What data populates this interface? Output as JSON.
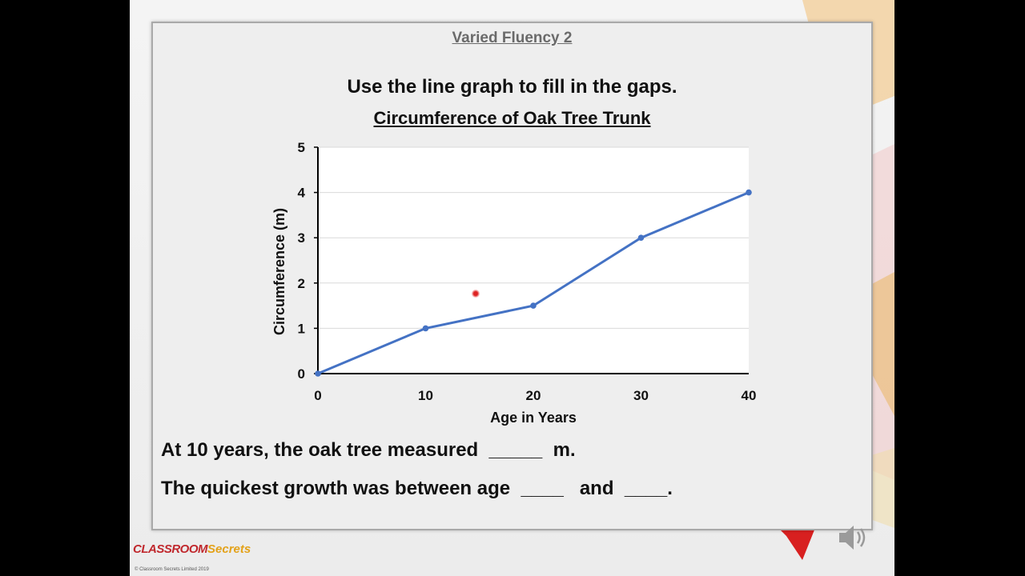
{
  "slide": {
    "section_title": "Varied Fluency 2",
    "instruction": "Use the line graph to fill in the gaps.",
    "question_1": "At 10 years, the oak tree measured  _____  m.",
    "question_2": "The quickest growth was between age  ____   and  ____.",
    "logo_main": "CLASSROOM",
    "logo_secrets": "Secrets",
    "logo_copyright": "© Classroom Secrets Limited 2019",
    "speaker_icon": "speaker-icon",
    "colors": {
      "line": "#4472c4",
      "panel": "#eeeeee",
      "plot_bg": "#ffffff"
    }
  },
  "chart_data": {
    "type": "line",
    "title": "Circumference of Oak Tree Trunk",
    "xlabel": "Age in Years",
    "ylabel": "Circumference (m)",
    "x": [
      0,
      10,
      20,
      30,
      40
    ],
    "series": [
      {
        "values": [
          0,
          1,
          1.5,
          3,
          4
        ]
      }
    ],
    "xticks": [
      "0",
      "10",
      "20",
      "30",
      "40"
    ],
    "yticks": [
      "0",
      "1",
      "2",
      "3",
      "4",
      "5"
    ],
    "xlim": [
      0,
      40
    ],
    "ylim": [
      0,
      5
    ],
    "grid": true,
    "legend": "none"
  }
}
